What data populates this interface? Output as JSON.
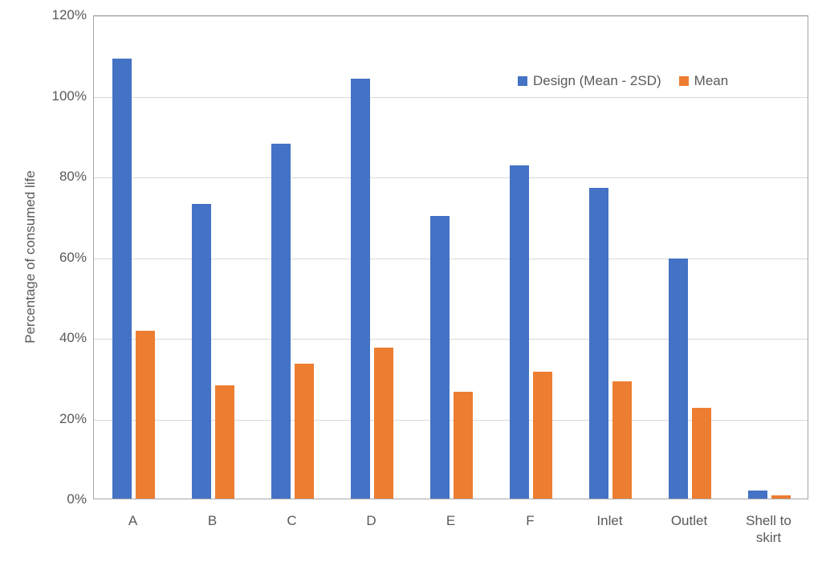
{
  "chart_data": {
    "type": "bar",
    "title": "",
    "xlabel": "",
    "ylabel": "Percentage of consumed life",
    "categories": [
      "A",
      "B",
      "C",
      "D",
      "E",
      "F",
      "Inlet",
      "Outlet",
      "Shell to skirt"
    ],
    "series": [
      {
        "name": "Design (Mean - 2SD)",
        "color": "#4472C4",
        "values": [
          109,
          73,
          88,
          104,
          70,
          82.5,
          77,
          59.5,
          2
        ]
      },
      {
        "name": "Mean",
        "color": "#ED7D31",
        "values": [
          41.5,
          28,
          33.5,
          37.5,
          26.5,
          31.5,
          29,
          22.5,
          0.8
        ]
      }
    ],
    "y_ticks": [
      "0%",
      "20%",
      "40%",
      "60%",
      "80%",
      "100%",
      "120%"
    ],
    "ylim": [
      0,
      120
    ],
    "y_step": 20,
    "grid": true,
    "legend_position": "top-right-inside"
  },
  "colors": {
    "series_blue": "#4472C4",
    "series_orange": "#ED7D31",
    "gridline": "#D9D9D9",
    "plot_border": "#A6A6A6",
    "axis_text": "#595959"
  }
}
